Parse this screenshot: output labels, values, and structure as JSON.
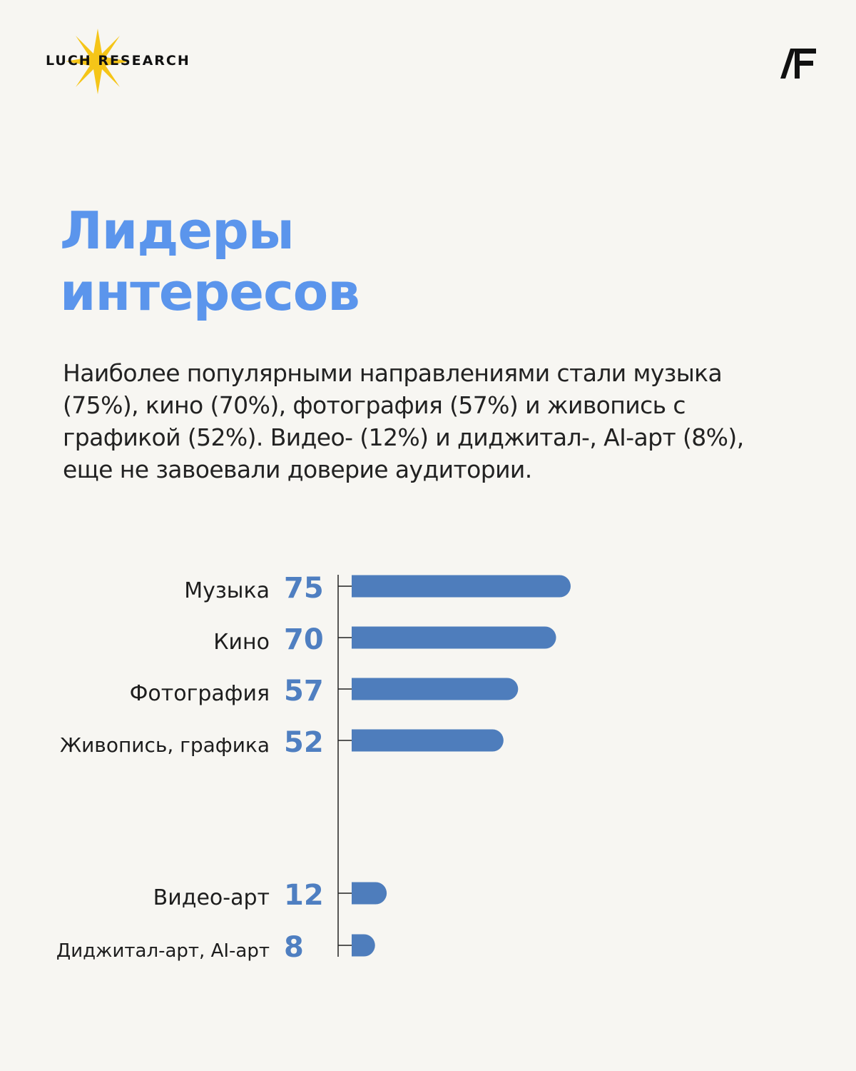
{
  "brand": {
    "logo_text": "LUCH RESEARCH",
    "logo_icon": "star-icon",
    "partner_mark": "AF"
  },
  "title_lines": [
    "Лидеры",
    "интересов"
  ],
  "description": "Наиболее популярными направлениями стали музыка (75%), кино (70%), фотография (57%) и живопись с графикой (52%). Видео- (12%) и диджитал-, AI-арт (8%), еще не завоевали доверие аудитории.",
  "colors": {
    "background": "#f7f6f2",
    "title": "#5b95ec",
    "bar": "#4e7dbc",
    "value_text": "#4f7fc1",
    "star": "#f5c518"
  },
  "chart_data": {
    "type": "bar",
    "orientation": "horizontal",
    "categories": [
      "Музыка",
      "Кино",
      "Фотография",
      "Живопись, графика",
      "Видео-арт",
      "Диджитал-арт, AI-арт"
    ],
    "values": [
      75,
      70,
      57,
      52,
      12,
      8
    ],
    "unit": "%",
    "title": "",
    "xlabel": "",
    "ylabel": "",
    "xlim": [
      0,
      100
    ],
    "grid": false,
    "legend": "none"
  }
}
